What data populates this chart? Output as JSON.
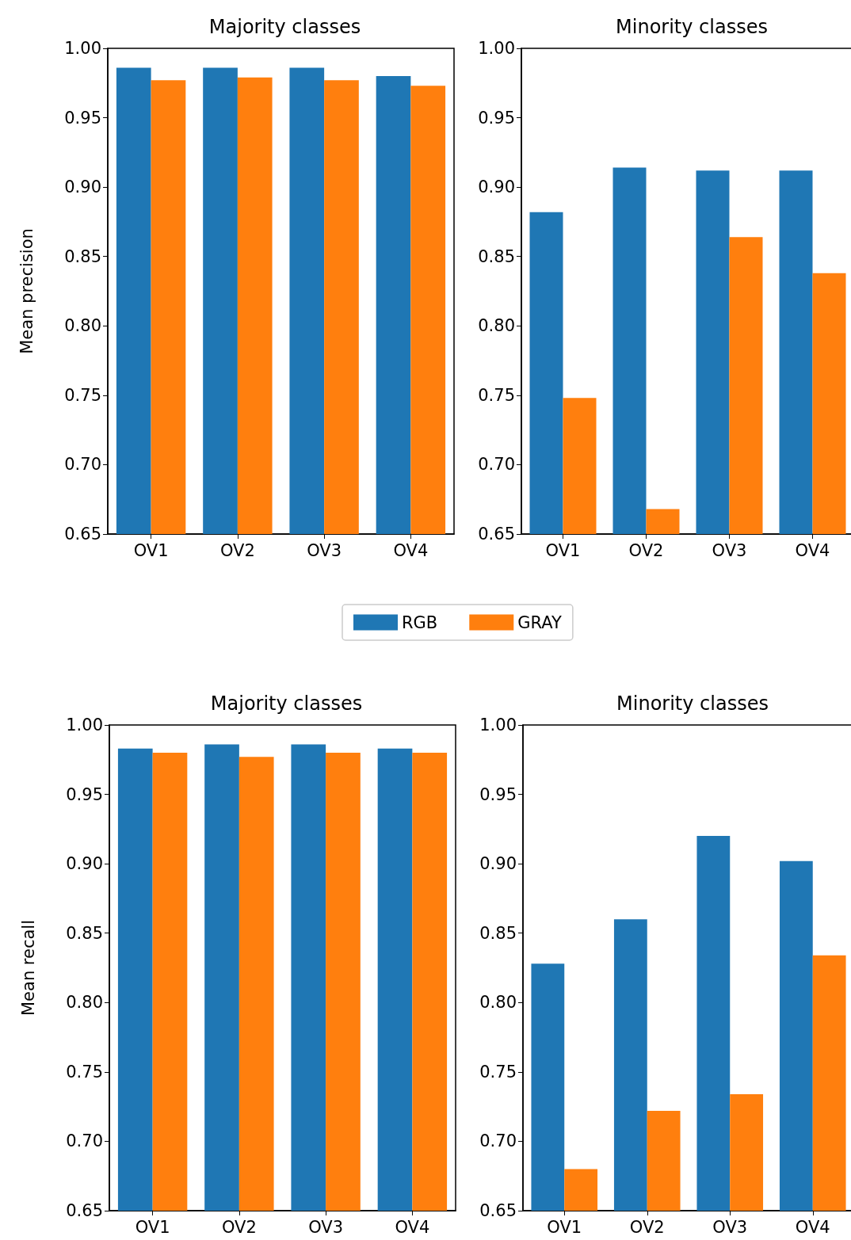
{
  "chart_data": [
    {
      "type": "bar",
      "title": "Majority classes",
      "ylabel": "Mean precision",
      "categories": [
        "OV1",
        "OV2",
        "OV3",
        "OV4"
      ],
      "legend": "bottom",
      "ylim": [
        0.65,
        1.0
      ],
      "yticks": [
        {
          "value": 0.65,
          "label": "0.65"
        },
        {
          "value": 0.7,
          "label": "0.70"
        },
        {
          "value": 0.75,
          "label": "0.75"
        },
        {
          "value": 0.8,
          "label": "0.80"
        },
        {
          "value": 0.85,
          "label": "0.85"
        },
        {
          "value": 0.9,
          "label": "0.90"
        },
        {
          "value": 0.95,
          "label": "0.95"
        },
        {
          "value": 1.0,
          "label": "1.00"
        }
      ],
      "grid": false,
      "series": [
        {
          "name": "RGB",
          "color": "#1f77b4",
          "values": [
            0.986,
            0.986,
            0.986,
            0.98
          ]
        },
        {
          "name": "GRAY",
          "color": "#ff7f0e",
          "values": [
            0.977,
            0.979,
            0.977,
            0.973
          ]
        }
      ]
    },
    {
      "type": "bar",
      "title": "Minority classes",
      "categories": [
        "OV1",
        "OV2",
        "OV3",
        "OV4"
      ],
      "ylim": [
        0.65,
        1.0
      ],
      "yticks": [
        {
          "value": 0.65,
          "label": "0.65"
        },
        {
          "value": 0.7,
          "label": "0.70"
        },
        {
          "value": 0.75,
          "label": "0.75"
        },
        {
          "value": 0.8,
          "label": "0.80"
        },
        {
          "value": 0.85,
          "label": "0.85"
        },
        {
          "value": 0.9,
          "label": "0.90"
        },
        {
          "value": 0.95,
          "label": "0.95"
        },
        {
          "value": 1.0,
          "label": "1.00"
        }
      ],
      "grid": false,
      "series": [
        {
          "color": "#1f77b4",
          "values": [
            0.882,
            0.914,
            0.912,
            0.912
          ]
        },
        {
          "color": "#ff7f0e",
          "values": [
            0.748,
            0.668,
            0.864,
            0.838
          ]
        }
      ]
    },
    {
      "type": "bar",
      "title": "Majority classes",
      "ylabel": "Mean recall",
      "categories": [
        "OV1",
        "OV2",
        "OV3",
        "OV4"
      ],
      "ylim": [
        0.65,
        1.0
      ],
      "yticks": [
        {
          "value": 0.65,
          "label": "0.65"
        },
        {
          "value": 0.7,
          "label": "0.70"
        },
        {
          "value": 0.75,
          "label": "0.75"
        },
        {
          "value": 0.8,
          "label": "0.80"
        },
        {
          "value": 0.85,
          "label": "0.85"
        },
        {
          "value": 0.9,
          "label": "0.90"
        },
        {
          "value": 0.95,
          "label": "0.95"
        },
        {
          "value": 1.0,
          "label": "1.00"
        }
      ],
      "grid": false,
      "series": [
        {
          "color": "#1f77b4",
          "values": [
            0.983,
            0.986,
            0.986,
            0.983
          ]
        },
        {
          "color": "#ff7f0e",
          "values": [
            0.98,
            0.977,
            0.98,
            0.98
          ]
        }
      ]
    },
    {
      "type": "bar",
      "title": "Minority classes",
      "categories": [
        "OV1",
        "OV2",
        "OV3",
        "OV4"
      ],
      "ylim": [
        0.65,
        1.0
      ],
      "yticks": [
        {
          "value": 0.65,
          "label": "0.65"
        },
        {
          "value": 0.7,
          "label": "0.70"
        },
        {
          "value": 0.75,
          "label": "0.75"
        },
        {
          "value": 0.8,
          "label": "0.80"
        },
        {
          "value": 0.85,
          "label": "0.85"
        },
        {
          "value": 0.9,
          "label": "0.90"
        },
        {
          "value": 0.95,
          "label": "0.95"
        },
        {
          "value": 1.0,
          "label": "1.00"
        }
      ],
      "grid": false,
      "series": [
        {
          "color": "#1f77b4",
          "values": [
            0.828,
            0.86,
            0.92,
            0.902
          ]
        },
        {
          "color": "#ff7f0e",
          "values": [
            0.68,
            0.722,
            0.734,
            0.834
          ]
        }
      ]
    }
  ]
}
